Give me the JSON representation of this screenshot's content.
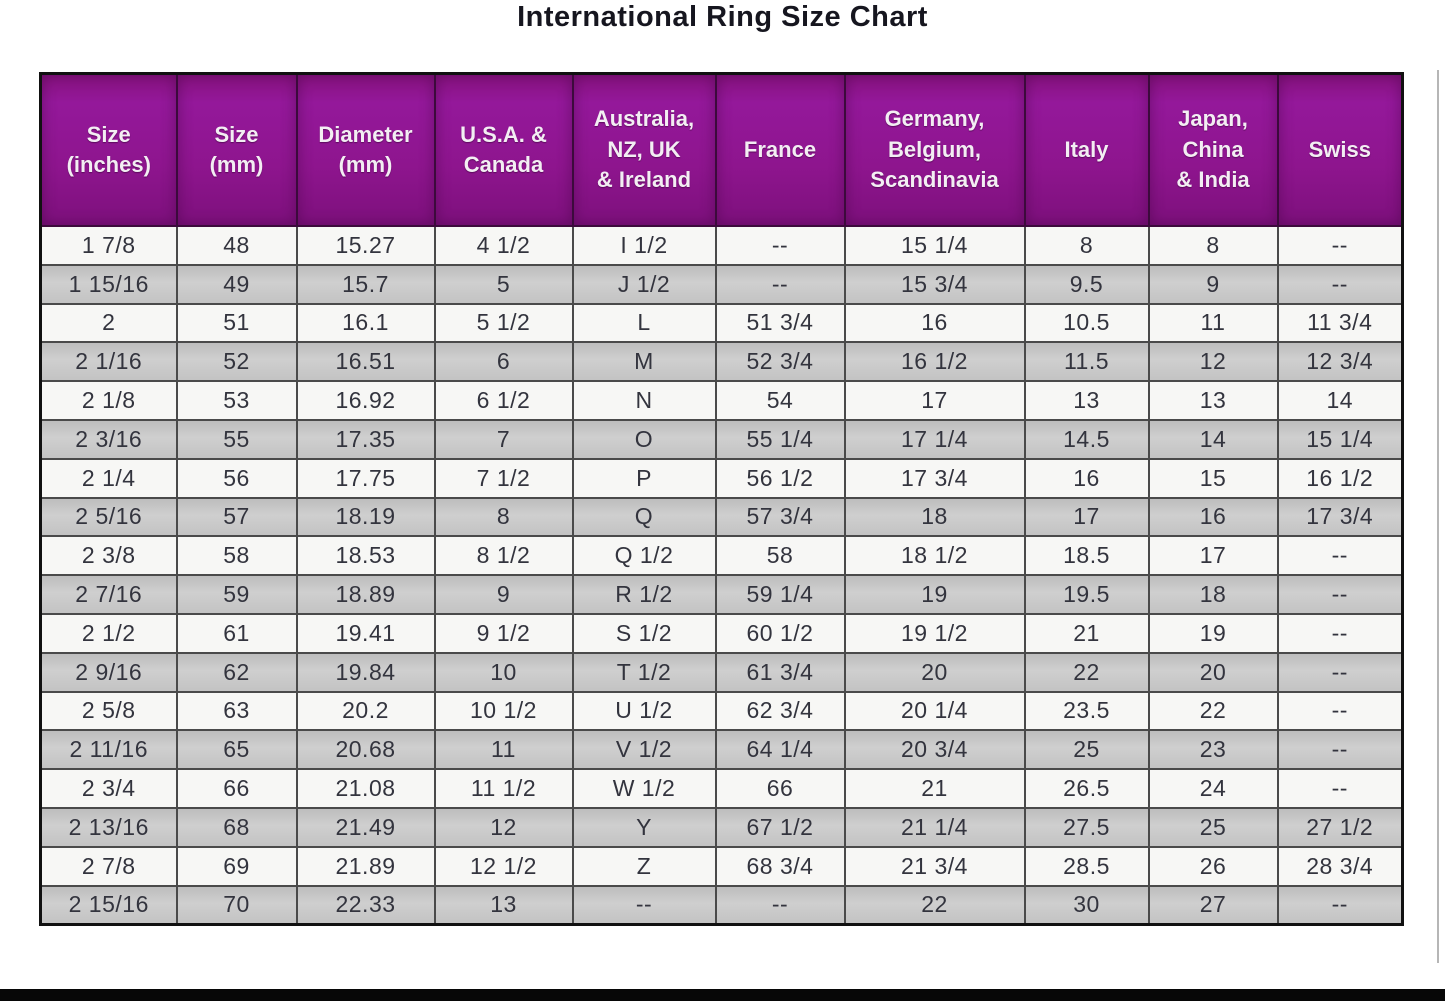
{
  "title": "International Ring Size Chart",
  "colors": {
    "header_purple": "#8e158e",
    "row_odd": "#f7f7f5",
    "row_even": "#c7c7c7",
    "border_dark": "#4a4a4a",
    "title_text": "#16161f"
  },
  "chart_data": {
    "type": "table",
    "title": "International Ring Size Chart",
    "columns": [
      "Size\n(inches)",
      "Size\n(mm)",
      "Diameter\n(mm)",
      "U.S.A. &\nCanada",
      "Australia,\nNZ, UK\n& Ireland",
      "France",
      "Germany,\nBelgium,\nScandinavia",
      "Italy",
      "Japan,\nChina\n& India",
      "Swiss"
    ],
    "rows": [
      [
        "1 7/8",
        "48",
        "15.27",
        "4 1/2",
        "I 1/2",
        "--",
        "15 1/4",
        "8",
        "8",
        "--"
      ],
      [
        "1 15/16",
        "49",
        "15.7",
        "5",
        "J 1/2",
        "--",
        "15 3/4",
        "9.5",
        "9",
        "--"
      ],
      [
        "2",
        "51",
        "16.1",
        "5 1/2",
        "L",
        "51 3/4",
        "16",
        "10.5",
        "11",
        "11 3/4"
      ],
      [
        "2 1/16",
        "52",
        "16.51",
        "6",
        "M",
        "52 3/4",
        "16 1/2",
        "11.5",
        "12",
        "12 3/4"
      ],
      [
        "2 1/8",
        "53",
        "16.92",
        "6 1/2",
        "N",
        "54",
        "17",
        "13",
        "13",
        "14"
      ],
      [
        "2 3/16",
        "55",
        "17.35",
        "7",
        "O",
        "55 1/4",
        "17 1/4",
        "14.5",
        "14",
        "15 1/4"
      ],
      [
        "2 1/4",
        "56",
        "17.75",
        "7 1/2",
        "P",
        "56 1/2",
        "17 3/4",
        "16",
        "15",
        "16 1/2"
      ],
      [
        "2 5/16",
        "57",
        "18.19",
        "8",
        "Q",
        "57 3/4",
        "18",
        "17",
        "16",
        "17 3/4"
      ],
      [
        "2 3/8",
        "58",
        "18.53",
        "8 1/2",
        "Q 1/2",
        "58",
        "18 1/2",
        "18.5",
        "17",
        "--"
      ],
      [
        "2 7/16",
        "59",
        "18.89",
        "9",
        "R 1/2",
        "59 1/4",
        "19",
        "19.5",
        "18",
        "--"
      ],
      [
        "2 1/2",
        "61",
        "19.41",
        "9 1/2",
        "S 1/2",
        "60 1/2",
        "19 1/2",
        "21",
        "19",
        "--"
      ],
      [
        "2 9/16",
        "62",
        "19.84",
        "10",
        "T 1/2",
        "61 3/4",
        "20",
        "22",
        "20",
        "--"
      ],
      [
        "2 5/8",
        "63",
        "20.2",
        "10 1/2",
        "U 1/2",
        "62 3/4",
        "20 1/4",
        "23.5",
        "22",
        "--"
      ],
      [
        "2 11/16",
        "65",
        "20.68",
        "11",
        "V 1/2",
        "64 1/4",
        "20 3/4",
        "25",
        "23",
        "--"
      ],
      [
        "2 3/4",
        "66",
        "21.08",
        "11 1/2",
        "W 1/2",
        "66",
        "21",
        "26.5",
        "24",
        "--"
      ],
      [
        "2 13/16",
        "68",
        "21.49",
        "12",
        "Y",
        "67 1/2",
        "21 1/4",
        "27.5",
        "25",
        "27 1/2"
      ],
      [
        "2 7/8",
        "69",
        "21.89",
        "12 1/2",
        "Z",
        "68 3/4",
        "21 3/4",
        "28.5",
        "26",
        "28 3/4"
      ],
      [
        "2 15/16",
        "70",
        "22.33",
        "13",
        "--",
        "--",
        "22",
        "30",
        "27",
        "--"
      ]
    ]
  }
}
